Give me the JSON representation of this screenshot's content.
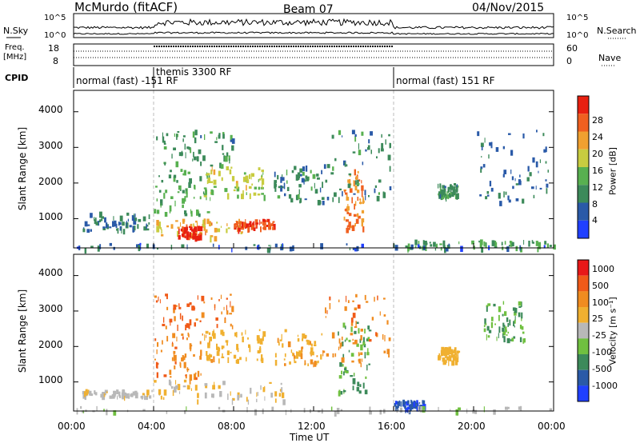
{
  "header": {
    "radar": "McMurdo (fitACF)",
    "beam": "Beam 07",
    "date": "04/Nov/2015"
  },
  "sky_panel": {
    "left_label": "N.Sky",
    "right_label": "N.Search",
    "left_ticks": [
      "10^5",
      "10^0"
    ],
    "right_ticks": [
      "10^5",
      "10^0"
    ]
  },
  "freq_panel": {
    "left_label_line1": "Freq.",
    "left_label_line2": "[MHz]",
    "right_label": "Nave",
    "left_ticks": [
      "18",
      "8"
    ],
    "right_ticks": [
      "60",
      "0"
    ]
  },
  "cpid_panel": {
    "label": "CPID",
    "entries": [
      {
        "text": "normal (fast) -151 RF",
        "start_hour": 0
      },
      {
        "text": "themis 3300 RF",
        "start_hour": 4
      },
      {
        "text": "normal (fast) 151 RF",
        "start_hour": 16
      }
    ]
  },
  "axes": {
    "ylabel": "Slant Range [km]",
    "xlabel": "Time UT",
    "y_ticks": [
      "1000",
      "2000",
      "3000",
      "4000"
    ],
    "x_ticks": [
      "00:00",
      "04:00",
      "08:00",
      "12:00",
      "16:00",
      "20:00",
      "00:00"
    ]
  },
  "colors": {
    "power": [
      "#2040ff",
      "#2a5aa8",
      "#3c8a5a",
      "#58b050",
      "#c8cc40",
      "#f0a030",
      "#f06020",
      "#e82010"
    ],
    "velocity": [
      "#e81818",
      "#f05a18",
      "#f08c20",
      "#f0b030",
      "#b8b8b8",
      "#70c040",
      "#3c8a5a",
      "#2a5aa8",
      "#2040ff"
    ]
  },
  "chart_data": [
    {
      "type": "heatmap",
      "name": "Power",
      "xlabel": "Time UT",
      "ylabel": "Slant Range [km]",
      "xlim": [
        0,
        24
      ],
      "ylim": [
        180,
        4600
      ],
      "colorbar": {
        "label": "Power [dB]",
        "ticks": [
          "4",
          "8",
          "12",
          "16",
          "20",
          "24",
          "28"
        ],
        "range": [
          0,
          30
        ]
      },
      "blobs": [
        {
          "t0": 0.4,
          "t1": 3.9,
          "r0": 700,
          "r1": 1200,
          "level": 8
        },
        {
          "t0": 4.0,
          "t1": 8.5,
          "r0": 500,
          "r1": 1050,
          "level": 20
        },
        {
          "t0": 5.2,
          "t1": 6.3,
          "r0": 500,
          "r1": 800,
          "level": 28
        },
        {
          "t0": 8.0,
          "t1": 10.0,
          "r0": 750,
          "r1": 1000,
          "level": 26
        },
        {
          "t0": 4.0,
          "t1": 7.0,
          "r0": 1100,
          "r1": 2400,
          "level": 12
        },
        {
          "t0": 6.5,
          "t1": 9.5,
          "r0": 1600,
          "r1": 2500,
          "level": 16
        },
        {
          "t0": 4.0,
          "t1": 8.0,
          "r0": 2500,
          "r1": 3500,
          "level": 10
        },
        {
          "t0": 10.0,
          "t1": 12.5,
          "r0": 1500,
          "r1": 2500,
          "level": 9
        },
        {
          "t0": 13.5,
          "t1": 14.5,
          "r0": 700,
          "r1": 2400,
          "level": 22
        },
        {
          "t0": 12.5,
          "t1": 15.8,
          "r0": 1500,
          "r1": 3500,
          "level": 9
        },
        {
          "t0": 18.2,
          "t1": 19.2,
          "r0": 1600,
          "r1": 2000,
          "level": 10
        },
        {
          "t0": 16.5,
          "t1": 24.0,
          "r0": 200,
          "r1": 420,
          "level": 12
        },
        {
          "t0": 20.0,
          "t1": 23.8,
          "r0": 1500,
          "r1": 3500,
          "level": 7
        },
        {
          "t0": 0.0,
          "t1": 24.0,
          "r0": 180,
          "r1": 320,
          "level": 6
        }
      ]
    },
    {
      "type": "heatmap",
      "name": "Velocity",
      "xlabel": "Time UT",
      "ylabel": "Slant Range [km]",
      "xlim": [
        0,
        24
      ],
      "ylim": [
        180,
        4600
      ],
      "colorbar": {
        "label": "Velocity [m s⁻¹]",
        "ticks": [
          "-1000",
          "-500",
          "-100",
          "-25",
          "25",
          "100",
          "500",
          "1000"
        ],
        "range": [
          -1200,
          1200
        ]
      },
      "blobs": [
        {
          "t0": 0.4,
          "t1": 3.9,
          "r0": 600,
          "r1": 800,
          "level": 80
        },
        {
          "t0": 4.0,
          "t1": 10.5,
          "r0": 500,
          "r1": 1100,
          "level": 150
        },
        {
          "t0": 4.0,
          "t1": 7.0,
          "r0": 1100,
          "r1": 2400,
          "level": 600
        },
        {
          "t0": 6.5,
          "t1": 9.5,
          "r0": 1600,
          "r1": 2500,
          "level": 300
        },
        {
          "t0": 4.0,
          "t1": 8.0,
          "r0": 2500,
          "r1": 3500,
          "level": 700
        },
        {
          "t0": 10.0,
          "t1": 12.5,
          "r0": 1500,
          "r1": 2500,
          "level": 350
        },
        {
          "t0": 13.2,
          "t1": 14.8,
          "r0": 700,
          "r1": 2800,
          "level": -400
        },
        {
          "t0": 12.5,
          "t1": 15.8,
          "r0": 1500,
          "r1": 3500,
          "level": 600
        },
        {
          "t0": 16.0,
          "t1": 17.5,
          "r0": 250,
          "r1": 500,
          "level": -900
        },
        {
          "t0": 18.2,
          "t1": 19.2,
          "r0": 1600,
          "r1": 2000,
          "level": 300
        },
        {
          "t0": 20.5,
          "t1": 22.5,
          "r0": 2200,
          "r1": 3300,
          "level": -400
        },
        {
          "t0": 0.0,
          "t1": 24.0,
          "r0": 180,
          "r1": 320,
          "level": -60
        }
      ]
    }
  ]
}
